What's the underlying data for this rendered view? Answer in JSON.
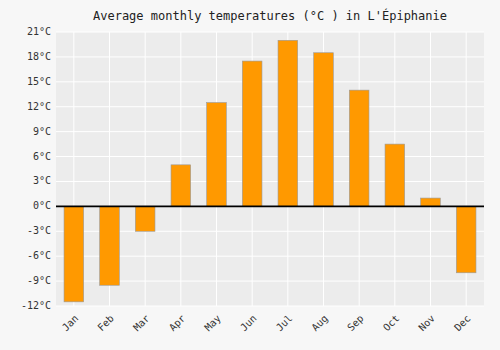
{
  "chart_data": {
    "type": "bar",
    "title": "Average monthly temperatures (°C ) in L'Épiphanie",
    "categories": [
      "Jan",
      "Feb",
      "Mar",
      "Apr",
      "May",
      "Jun",
      "Jul",
      "Aug",
      "Sep",
      "Oct",
      "Nov",
      "Dec"
    ],
    "values": [
      -11.5,
      -9.5,
      -3.0,
      5.0,
      12.5,
      17.5,
      20.0,
      18.5,
      14.0,
      7.5,
      1.0,
      -8.0
    ],
    "color": "#FF9900",
    "ylim": [
      -12,
      21
    ],
    "yticks": [
      {
        "value": -12,
        "label": "-12°C"
      },
      {
        "value": -9,
        "label": "-9°C"
      },
      {
        "value": -6,
        "label": "-6°C"
      },
      {
        "value": -3,
        "label": "-3°C"
      },
      {
        "value": 0,
        "label": "0°C"
      },
      {
        "value": 3,
        "label": "3°C"
      },
      {
        "value": 6,
        "label": "6°C"
      },
      {
        "value": 9,
        "label": "9°C"
      },
      {
        "value": 12,
        "label": "12°C"
      },
      {
        "value": 15,
        "label": "15°C"
      },
      {
        "value": 18,
        "label": "18°C"
      },
      {
        "value": 21,
        "label": "21°C"
      }
    ],
    "grid": true
  }
}
